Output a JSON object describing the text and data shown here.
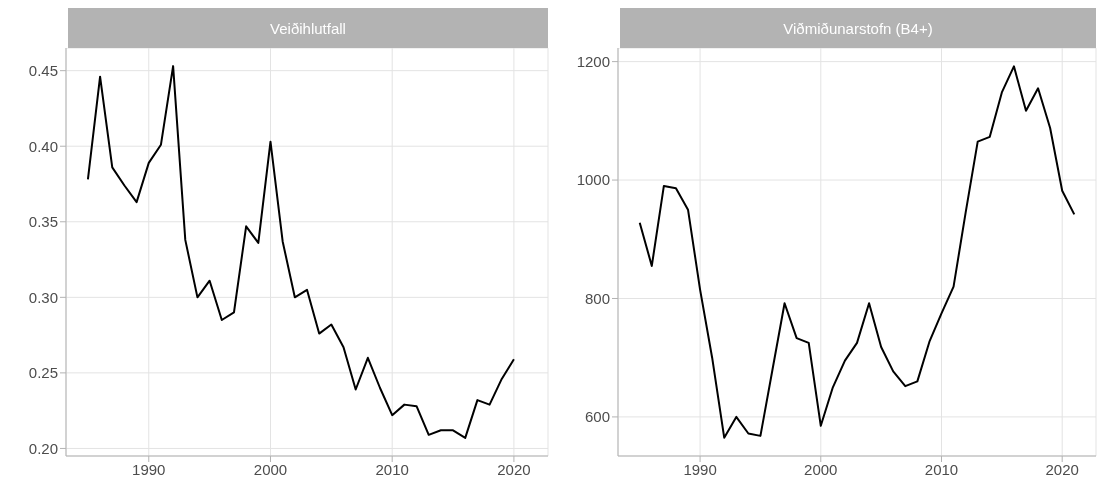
{
  "chart_data": [
    {
      "type": "line",
      "title": "Veiðihlutfall",
      "x": [
        1985,
        1986,
        1987,
        1988,
        1989,
        1990,
        1991,
        1992,
        1993,
        1994,
        1995,
        1996,
        1997,
        1998,
        1999,
        2000,
        2001,
        2002,
        2003,
        2004,
        2005,
        2006,
        2007,
        2008,
        2009,
        2010,
        2011,
        2012,
        2013,
        2014,
        2015,
        2016,
        2017,
        2018,
        2019,
        2020
      ],
      "values": [
        0.378,
        0.446,
        0.386,
        0.374,
        0.363,
        0.389,
        0.401,
        0.453,
        0.338,
        0.3,
        0.311,
        0.285,
        0.29,
        0.347,
        0.336,
        0.403,
        0.337,
        0.3,
        0.305,
        0.276,
        0.282,
        0.267,
        0.239,
        0.26,
        0.24,
        0.222,
        0.229,
        0.228,
        0.209,
        0.212,
        0.212,
        0.207,
        0.232,
        0.229,
        0.246,
        0.259
      ],
      "color": "#000000",
      "xlim": [
        1983.2,
        2022.8
      ],
      "xticks": [
        1990,
        2000,
        2010,
        2020
      ],
      "ylim": [
        0.195,
        0.465
      ],
      "yticks": [
        {
          "value": 0.2,
          "label": "0.20"
        },
        {
          "value": 0.25,
          "label": "0.25"
        },
        {
          "value": 0.3,
          "label": "0.30"
        },
        {
          "value": 0.35,
          "label": "0.35"
        },
        {
          "value": 0.4,
          "label": "0.40"
        },
        {
          "value": 0.45,
          "label": "0.45"
        }
      ],
      "grid": true,
      "line_style": "solid"
    },
    {
      "type": "line",
      "title": "Viðmiðunarstofn (B4+)",
      "x": [
        1985,
        1986,
        1987,
        1988,
        1989,
        1990,
        1991,
        1992,
        1993,
        1994,
        1995,
        1996,
        1997,
        1998,
        1999,
        2000,
        2001,
        2002,
        2003,
        2004,
        2005,
        2006,
        2007,
        2008,
        2009,
        2010,
        2011,
        2012,
        2013,
        2014,
        2015,
        2016,
        2017,
        2018,
        2019,
        2020,
        2021
      ],
      "values": [
        928,
        855,
        990,
        986,
        950,
        815,
        700,
        565,
        600,
        572,
        568,
        680,
        792,
        733,
        725,
        585,
        650,
        695,
        725,
        792,
        718,
        677,
        652,
        660,
        727,
        775,
        820,
        945,
        1065,
        1073,
        1148,
        1192,
        1117,
        1155,
        1088,
        982,
        942
      ],
      "color": "#000000",
      "xlim": [
        1983.2,
        2022.8
      ],
      "xticks": [
        1990,
        2000,
        2010,
        2020
      ],
      "ylim": [
        534,
        1223
      ],
      "yticks": [
        600,
        800,
        1000,
        1200
      ],
      "grid": true,
      "line_style": "solid"
    }
  ]
}
